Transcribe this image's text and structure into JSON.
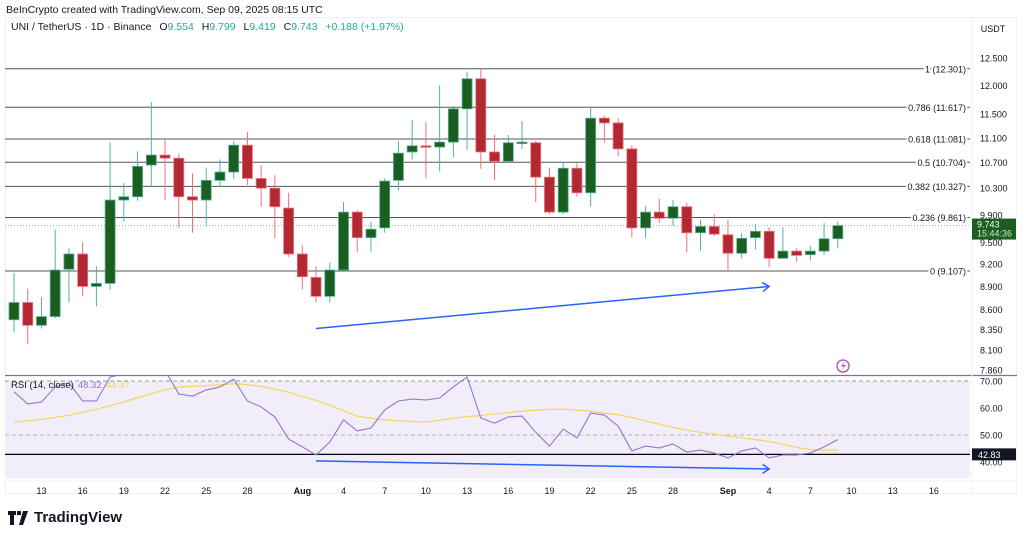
{
  "header": {
    "credit": "BeInCrypto created with TradingView.com, Sep 09, 2025 08:15 UTC",
    "symbol": "UNI / TetherUS · 1D · Binance",
    "o_label": "O",
    "o": "9.554",
    "h_label": "H",
    "h": "9.799",
    "l_label": "L",
    "l": "9.419",
    "c_label": "C",
    "c": "9.743",
    "change": "+0.188 (+1.97%)"
  },
  "logo": {
    "text": "TradingView",
    "icon": "tradingview-logo-icon"
  },
  "colors": {
    "up": "#1b5e20",
    "up_wick": "#4fb39c",
    "down": "#b22833",
    "down_wick": "#f0707a",
    "rsi": "#9575cd",
    "rsi_ma": "#f5d45a",
    "divergence": "#2962ff",
    "last_price": "#1b5e20",
    "rsi_band": "#f1eefa"
  },
  "chart_data": [
    {
      "type": "candlestick",
      "title": "",
      "price_axis": {
        "unit": "USDT",
        "scale": "log",
        "range": [
          7.86,
          12.5
        ],
        "ticks": [
          "12.500",
          "12.000",
          "11.500",
          "11.100",
          "10.700",
          "10.300",
          "9.900",
          "9.500",
          "9.200",
          "8.900",
          "8.600",
          "8.350",
          "8.100",
          "7.860"
        ]
      },
      "last_price": {
        "value": "9.743",
        "countdown": "15:44:36"
      },
      "time_axis": {
        "ticks": [
          {
            "date": "2025-07-13",
            "label": "13"
          },
          {
            "date": "2025-07-16",
            "label": "16"
          },
          {
            "date": "2025-07-19",
            "label": "19"
          },
          {
            "date": "2025-07-22",
            "label": "22"
          },
          {
            "date": "2025-07-25",
            "label": "25"
          },
          {
            "date": "2025-07-28",
            "label": "28"
          },
          {
            "date": "2025-08-01",
            "label": "Aug"
          },
          {
            "date": "2025-08-04",
            "label": "4"
          },
          {
            "date": "2025-08-07",
            "label": "7"
          },
          {
            "date": "2025-08-10",
            "label": "10"
          },
          {
            "date": "2025-08-13",
            "label": "13"
          },
          {
            "date": "2025-08-16",
            "label": "16"
          },
          {
            "date": "2025-08-19",
            "label": "19"
          },
          {
            "date": "2025-08-22",
            "label": "22"
          },
          {
            "date": "2025-08-25",
            "label": "25"
          },
          {
            "date": "2025-08-28",
            "label": "28"
          },
          {
            "date": "2025-09-01",
            "label": "Sep"
          },
          {
            "date": "2025-09-04",
            "label": "4"
          },
          {
            "date": "2025-09-07",
            "label": "7"
          },
          {
            "date": "2025-09-10",
            "label": "10"
          },
          {
            "date": "2025-09-13",
            "label": "13"
          },
          {
            "date": "2025-09-16",
            "label": "16"
          }
        ]
      },
      "fib_levels": [
        {
          "level": "1",
          "price": 12.301,
          "label": "1 (12.301)"
        },
        {
          "level": "0.786",
          "price": 11.617,
          "label": "0.786 (11.617)"
        },
        {
          "level": "0.618",
          "price": 11.081,
          "label": "0.618 (11.081)"
        },
        {
          "level": "0.5",
          "price": 10.704,
          "label": "0.5 (10.704)"
        },
        {
          "level": "0.382",
          "price": 10.327,
          "label": "0.382 (10.327)"
        },
        {
          "level": "0.236",
          "price": 9.861,
          "label": "0.236 (9.861)"
        },
        {
          "level": "0",
          "price": 9.107,
          "label": "0 (9.107)"
        }
      ],
      "divergence_line": {
        "from": [
          "2025-08-02",
          8.36
        ],
        "to": [
          "2025-09-04",
          8.9
        ]
      },
      "candles_columns": [
        "date",
        "open",
        "high",
        "low",
        "close"
      ],
      "candles": [
        [
          "2025-07-11",
          8.47,
          9.08,
          8.31,
          8.69
        ],
        [
          "2025-07-12",
          8.69,
          8.87,
          8.17,
          8.4
        ],
        [
          "2025-07-13",
          8.4,
          8.76,
          8.36,
          8.51
        ],
        [
          "2025-07-14",
          8.51,
          9.69,
          8.49,
          9.12
        ],
        [
          "2025-07-15",
          9.13,
          9.42,
          8.69,
          9.34
        ],
        [
          "2025-07-16",
          9.34,
          9.51,
          8.77,
          8.9
        ],
        [
          "2025-07-17",
          8.9,
          9.17,
          8.64,
          8.94
        ],
        [
          "2025-07-18",
          8.94,
          11.02,
          8.86,
          10.12
        ],
        [
          "2025-07-19",
          10.12,
          10.38,
          9.8,
          10.17
        ],
        [
          "2025-07-20",
          10.17,
          10.88,
          10.11,
          10.64
        ],
        [
          "2025-07-21",
          10.66,
          11.71,
          10.32,
          10.82
        ],
        [
          "2025-07-22",
          10.82,
          11.08,
          10.12,
          10.77
        ],
        [
          "2025-07-23",
          10.77,
          10.84,
          9.71,
          10.17
        ],
        [
          "2025-07-24",
          10.17,
          10.53,
          9.64,
          10.12
        ],
        [
          "2025-07-25",
          10.12,
          10.62,
          9.73,
          10.42
        ],
        [
          "2025-07-26",
          10.42,
          10.75,
          10.32,
          10.55
        ],
        [
          "2025-07-27",
          10.55,
          11.05,
          10.45,
          10.98
        ],
        [
          "2025-07-28",
          10.98,
          11.2,
          10.35,
          10.45
        ],
        [
          "2025-07-29",
          10.45,
          10.66,
          10.02,
          10.3
        ],
        [
          "2025-07-30",
          10.3,
          10.5,
          9.56,
          10.02
        ],
        [
          "2025-07-31",
          10.0,
          10.23,
          9.3,
          9.34
        ],
        [
          "2025-08-01",
          9.34,
          9.46,
          8.86,
          9.03
        ],
        [
          "2025-08-02",
          9.02,
          9.17,
          8.69,
          8.77
        ],
        [
          "2025-08-03",
          8.77,
          9.22,
          8.69,
          9.12
        ],
        [
          "2025-08-04",
          9.12,
          10.09,
          9.11,
          9.94
        ],
        [
          "2025-08-05",
          9.94,
          9.97,
          9.36,
          9.57
        ],
        [
          "2025-08-06",
          9.57,
          9.8,
          9.37,
          9.69
        ],
        [
          "2025-08-07",
          9.71,
          10.45,
          9.64,
          10.41
        ],
        [
          "2025-08-08",
          10.42,
          11.05,
          10.27,
          10.85
        ],
        [
          "2025-08-09",
          10.87,
          11.4,
          10.75,
          10.97
        ],
        [
          "2025-08-10",
          10.97,
          11.37,
          10.45,
          10.95
        ],
        [
          "2025-08-11",
          10.95,
          12.0,
          10.56,
          11.03
        ],
        [
          "2025-08-12",
          11.03,
          11.64,
          10.79,
          11.59
        ],
        [
          "2025-08-13",
          11.59,
          12.25,
          10.9,
          12.12
        ],
        [
          "2025-08-14",
          12.12,
          12.301,
          10.6,
          10.87
        ],
        [
          "2025-08-15",
          10.87,
          11.15,
          10.42,
          10.72
        ],
        [
          "2025-08-16",
          10.72,
          11.15,
          10.7,
          11.02
        ],
        [
          "2025-08-17",
          11.02,
          11.38,
          10.92,
          11.03
        ],
        [
          "2025-08-18",
          11.02,
          11.05,
          10.09,
          10.47
        ],
        [
          "2025-08-19",
          10.47,
          10.62,
          9.91,
          9.94
        ],
        [
          "2025-08-20",
          9.94,
          10.69,
          9.91,
          10.61
        ],
        [
          "2025-08-21",
          10.61,
          10.69,
          10.17,
          10.23
        ],
        [
          "2025-08-22",
          10.23,
          11.62,
          10.02,
          11.43
        ],
        [
          "2025-08-23",
          11.43,
          11.47,
          11.02,
          11.35
        ],
        [
          "2025-08-24",
          11.35,
          11.43,
          10.8,
          10.92
        ],
        [
          "2025-08-25",
          10.92,
          10.98,
          9.57,
          9.71
        ],
        [
          "2025-08-26",
          9.71,
          10.03,
          9.56,
          9.94
        ],
        [
          "2025-08-27",
          9.94,
          10.14,
          9.78,
          9.85
        ],
        [
          "2025-08-28",
          9.85,
          10.12,
          9.74,
          10.02
        ],
        [
          "2025-08-29",
          10.02,
          10.08,
          9.36,
          9.64
        ],
        [
          "2025-08-30",
          9.64,
          9.83,
          9.39,
          9.73
        ],
        [
          "2025-08-31",
          9.73,
          9.91,
          9.59,
          9.62
        ],
        [
          "2025-09-01",
          9.61,
          9.83,
          9.107,
          9.35
        ],
        [
          "2025-09-02",
          9.35,
          9.63,
          9.28,
          9.56
        ],
        [
          "2025-09-03",
          9.57,
          9.77,
          9.4,
          9.66
        ],
        [
          "2025-09-04",
          9.66,
          9.72,
          9.16,
          9.28
        ],
        [
          "2025-09-05",
          9.28,
          9.72,
          9.28,
          9.38
        ],
        [
          "2025-09-06",
          9.38,
          9.42,
          9.23,
          9.32
        ],
        [
          "2025-09-07",
          9.33,
          9.45,
          9.25,
          9.38
        ],
        [
          "2025-09-08",
          9.38,
          9.78,
          9.33,
          9.554
        ],
        [
          "2025-09-09",
          9.554,
          9.799,
          9.419,
          9.743
        ]
      ]
    },
    {
      "type": "line",
      "indicator_label": "RSI (14, close)",
      "rsi_value": "48.32",
      "ma_value": "44.37",
      "y_axis": {
        "ticks": [
          "70.00",
          "60.00",
          "50.00",
          "40.00"
        ],
        "upper_band": 70,
        "middle": 50
      },
      "horizontal_line": {
        "value": 42.83,
        "label": "42.83"
      },
      "divergence_line": {
        "from": [
          "2025-08-02",
          40.4
        ],
        "to": [
          "2025-09-04",
          37.4
        ]
      },
      "start_date": "2025-07-11",
      "rsi": [
        66,
        61.5,
        62.2,
        67.8,
        69.3,
        62.6,
        62.6,
        71.5,
        72.5,
        75,
        76,
        74,
        65.2,
        64.4,
        66.7,
        67.8,
        70.7,
        62.6,
        60.4,
        56.7,
        48.5,
        45.6,
        42.6,
        47.4,
        55.6,
        51.5,
        52.6,
        59.3,
        62.6,
        63.3,
        63,
        63.7,
        67.8,
        71.5,
        56.3,
        54.4,
        56.7,
        57,
        51,
        45.9,
        52.2,
        48.9,
        58.1,
        57.4,
        53.3,
        44.1,
        45.9,
        45.2,
        46.7,
        43.7,
        44.4,
        43.3,
        41.5,
        44.1,
        45.2,
        41.5,
        42.6,
        42.6,
        43.3,
        45.6,
        48.32
      ],
      "rsi_ma": [
        54.8,
        55.3,
        55.8,
        56.5,
        57.3,
        58.5,
        59.5,
        60.8,
        62.3,
        63.8,
        65.3,
        66.7,
        67.8,
        68.0,
        68.3,
        68.6,
        69.0,
        68.6,
        68.0,
        67.0,
        65.8,
        64.3,
        62.8,
        61.0,
        59.0,
        57.0,
        56.2,
        55.6,
        55.2,
        55.0,
        54.8,
        55.5,
        56.2,
        56.8,
        57.2,
        57.8,
        58.3,
        58.8,
        59.2,
        59.5,
        59.6,
        59.2,
        58.8,
        58.1,
        57.5,
        56.5,
        55.2,
        54.0,
        52.8,
        51.8,
        51.0,
        50.3,
        49.7,
        49.0,
        48.3,
        47.6,
        46.6,
        45.4,
        44.6,
        44.4,
        44.37
      ]
    }
  ]
}
